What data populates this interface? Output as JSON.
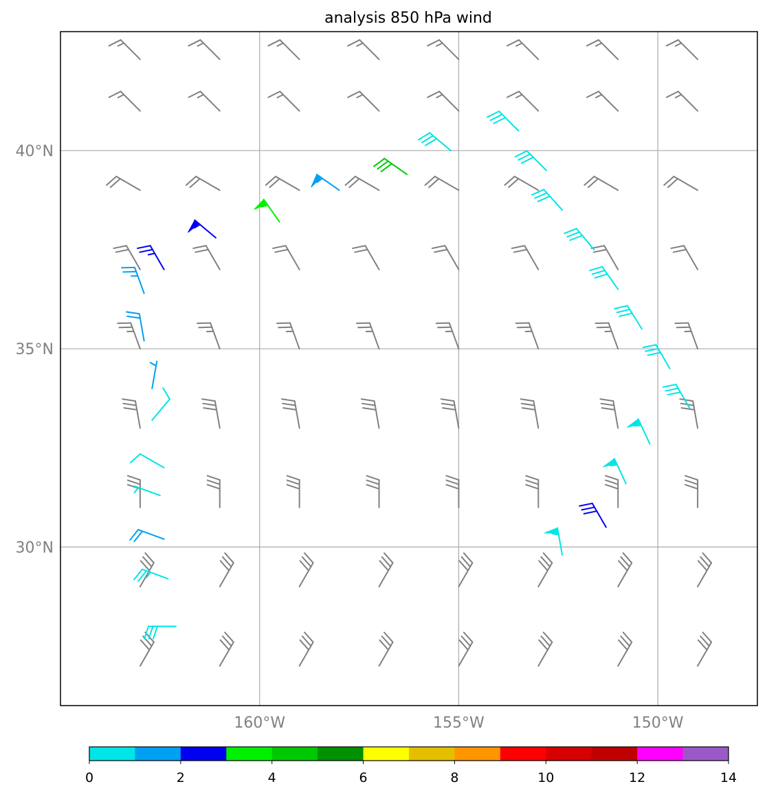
{
  "title": "analysis 850 hPa wind",
  "map": {
    "lon_range": [
      -165,
      -147.5
    ],
    "lat_range": [
      26,
      43
    ],
    "gridlines": true,
    "gridline_color": "#aaaaaa",
    "lat_ticks": [
      {
        "value": 30,
        "label": "30°N"
      },
      {
        "value": 35,
        "label": "35°N"
      },
      {
        "value": 40,
        "label": "40°N"
      }
    ],
    "lon_ticks": [
      {
        "value": -160,
        "label": "160°W"
      },
      {
        "value": -155,
        "label": "155°W"
      },
      {
        "value": -150,
        "label": "150°W"
      }
    ]
  },
  "colorbar": {
    "orientation": "horizontal",
    "placement": "bottom",
    "range": [
      0,
      14
    ],
    "colors": [
      "#00e5e5",
      "#00a0f0",
      "#0000f0",
      "#00f000",
      "#00c800",
      "#009000",
      "#ffff00",
      "#e5be00",
      "#ff9600",
      "#ff0000",
      "#d70000",
      "#bf0000",
      "#ff00ff",
      "#9b59c8"
    ],
    "ticks": [
      {
        "value": 0,
        "label": "0"
      },
      {
        "value": 2,
        "label": "2"
      },
      {
        "value": 4,
        "label": "4"
      },
      {
        "value": 6,
        "label": "6"
      },
      {
        "value": 8,
        "label": "8"
      },
      {
        "value": 10,
        "label": "10"
      },
      {
        "value": 12,
        "label": "12"
      },
      {
        "value": 14,
        "label": "14"
      }
    ]
  },
  "background_barbs": {
    "color": "#808080",
    "rows": [
      {
        "lat": 42.3,
        "dir": 315,
        "speed": 15
      },
      {
        "lat": 41.0,
        "dir": 315,
        "speed": 15
      },
      {
        "lat": 39.0,
        "dir": 300,
        "speed": 20
      },
      {
        "lat": 37.0,
        "dir": 330,
        "speed": 22
      },
      {
        "lat": 35.0,
        "dir": 340,
        "speed": 25
      },
      {
        "lat": 33.0,
        "dir": 350,
        "speed": 30
      },
      {
        "lat": 31.0,
        "dir": 0,
        "speed": 30
      },
      {
        "lat": 29.0,
        "dir": 30,
        "speed": 30
      },
      {
        "lat": 27.0,
        "dir": 30,
        "speed": 30
      }
    ],
    "lons": [
      -163,
      -161,
      -159,
      -157,
      -155,
      -153,
      -151,
      -149
    ]
  },
  "highlight_barbs": [
    {
      "lon": -162.4,
      "lat": 37.0,
      "dir": 330,
      "speed": 25,
      "color": "#0000f0"
    },
    {
      "lon": -161.1,
      "lat": 37.8,
      "dir": 310,
      "speed": 55,
      "color": "#0000f0"
    },
    {
      "lon": -159.5,
      "lat": 38.2,
      "dir": 325,
      "speed": 55,
      "color": "#00f000"
    },
    {
      "lon": -158.0,
      "lat": 39.0,
      "dir": 305,
      "speed": 55,
      "color": "#00a0f0"
    },
    {
      "lon": -156.3,
      "lat": 39.4,
      "dir": 305,
      "speed": 30,
      "color": "#00c800"
    },
    {
      "lon": -155.2,
      "lat": 40.0,
      "dir": 310,
      "speed": 30,
      "color": "#00e5e5"
    },
    {
      "lon": -153.5,
      "lat": 40.5,
      "dir": 315,
      "speed": 30,
      "color": "#00e5e5"
    },
    {
      "lon": -152.8,
      "lat": 39.5,
      "dir": 315,
      "speed": 30,
      "color": "#00e5e5"
    },
    {
      "lon": -152.4,
      "lat": 38.5,
      "dir": 318,
      "speed": 30,
      "color": "#00e5e5"
    },
    {
      "lon": -151.6,
      "lat": 37.5,
      "dir": 320,
      "speed": 30,
      "color": "#00e5e5"
    },
    {
      "lon": -151.0,
      "lat": 36.5,
      "dir": 325,
      "speed": 30,
      "color": "#00e5e5"
    },
    {
      "lon": -150.4,
      "lat": 35.5,
      "dir": 328,
      "speed": 30,
      "color": "#00e5e5"
    },
    {
      "lon": -149.7,
      "lat": 34.5,
      "dir": 330,
      "speed": 30,
      "color": "#00e5e5"
    },
    {
      "lon": -149.2,
      "lat": 33.5,
      "dir": 330,
      "speed": 30,
      "color": "#00e5e5"
    },
    {
      "lon": -150.2,
      "lat": 32.6,
      "dir": 335,
      "speed": 55,
      "color": "#00e5e5"
    },
    {
      "lon": -150.8,
      "lat": 31.6,
      "dir": 335,
      "speed": 55,
      "color": "#00e5e5"
    },
    {
      "lon": -151.3,
      "lat": 30.5,
      "dir": 330,
      "speed": 30,
      "color": "#0000f0"
    },
    {
      "lon": -152.4,
      "lat": 29.8,
      "dir": 350,
      "speed": 55,
      "color": "#00e5e5"
    },
    {
      "lon": -162.9,
      "lat": 36.4,
      "dir": 340,
      "speed": 25,
      "color": "#00a0f0"
    },
    {
      "lon": -162.9,
      "lat": 35.2,
      "dir": 350,
      "speed": 20,
      "color": "#00a0f0"
    },
    {
      "lon": -162.7,
      "lat": 34.0,
      "dir": 10,
      "speed": 5,
      "color": "#00a0f0"
    },
    {
      "lon": -162.7,
      "lat": 33.2,
      "dir": 40,
      "speed": 10,
      "color": "#00e5e5"
    },
    {
      "lon": -162.4,
      "lat": 32.0,
      "dir": 300,
      "speed": 10,
      "color": "#00e5e5"
    },
    {
      "lon": -162.5,
      "lat": 31.3,
      "dir": 290,
      "speed": 5,
      "color": "#00e5e5"
    },
    {
      "lon": -162.4,
      "lat": 30.2,
      "dir": 290,
      "speed": 20,
      "color": "#00a0f0"
    },
    {
      "lon": -162.3,
      "lat": 29.2,
      "dir": 290,
      "speed": 25,
      "color": "#00e5e5"
    },
    {
      "lon": -162.1,
      "lat": 28.0,
      "dir": 270,
      "speed": 30,
      "color": "#00e5e5"
    }
  ]
}
